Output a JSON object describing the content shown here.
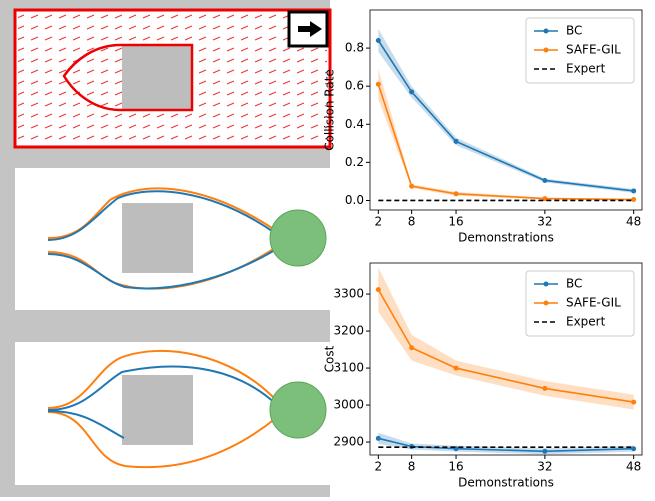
{
  "chart_data": [
    {
      "type": "line",
      "xlabel": "Demonstrations",
      "ylabel": "Collision Rate",
      "x": [
        2,
        8,
        16,
        32,
        48
      ],
      "xlim": [
        0.5,
        49.5
      ],
      "xticks": [
        2,
        8,
        16,
        32,
        48
      ],
      "ylim": [
        -0.05,
        1.0
      ],
      "yticks": [
        {
          "value": 0,
          "label": "0.0"
        },
        0.2,
        0.4,
        0.6,
        0.8
      ],
      "grid": false,
      "legend": "upper right",
      "series": [
        {
          "name": "BC",
          "color": "#1f77b4",
          "linestyle": "solid",
          "marker": true,
          "values": [
            0.84,
            0.57,
            0.31,
            0.105,
            0.05
          ],
          "errors": [
            0.06,
            0.03,
            0.02,
            0.01,
            0.01
          ]
        },
        {
          "name": "SAFE-GIL",
          "color": "#ff7f0e",
          "linestyle": "solid",
          "marker": true,
          "values": [
            0.61,
            0.075,
            0.035,
            0.01,
            0.005
          ],
          "errors": [
            0.08,
            0.01,
            0.01,
            0.005,
            0.005
          ]
        },
        {
          "name": "Expert",
          "color": "#000000",
          "linestyle": "dashed",
          "marker": false,
          "values": [
            0,
            0,
            0,
            0,
            0
          ]
        }
      ]
    },
    {
      "type": "line",
      "xlabel": "Demonstrations",
      "ylabel": "Cost",
      "x": [
        2,
        8,
        16,
        32,
        48
      ],
      "xlim": [
        0.5,
        49.5
      ],
      "xticks": [
        2,
        8,
        16,
        32,
        48
      ],
      "ylim": [
        2865,
        3384
      ],
      "yticks": [
        2900,
        3000,
        3100,
        3200,
        3300
      ],
      "grid": false,
      "legend": "upper right",
      "series": [
        {
          "name": "BC",
          "color": "#1f77b4",
          "linestyle": "solid",
          "marker": true,
          "values": [
            2910,
            2888,
            2882,
            2875,
            2882
          ],
          "errors": [
            15,
            8,
            8,
            8,
            8
          ]
        },
        {
          "name": "SAFE-GIL",
          "color": "#ff7f0e",
          "linestyle": "solid",
          "marker": true,
          "values": [
            3312,
            3155,
            3100,
            3045,
            3008
          ],
          "errors": [
            60,
            35,
            20,
            20,
            20
          ]
        },
        {
          "name": "Expert",
          "color": "#000000",
          "linestyle": "dashed",
          "marker": false,
          "values": [
            2886,
            2886,
            2886,
            2886,
            2886
          ]
        }
      ]
    }
  ]
}
